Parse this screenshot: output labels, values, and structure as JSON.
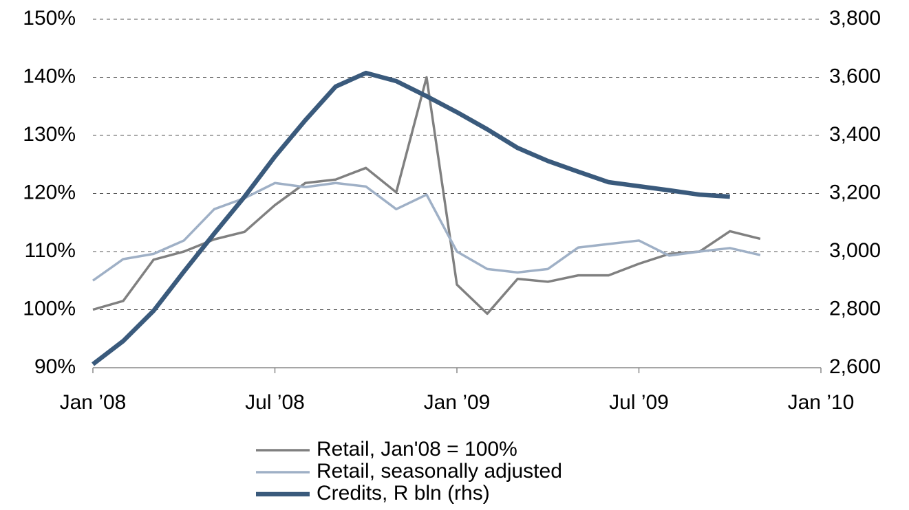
{
  "chart_data": {
    "type": "line",
    "x": [
      "2008-01",
      "2008-02",
      "2008-03",
      "2008-04",
      "2008-05",
      "2008-06",
      "2008-07",
      "2008-08",
      "2008-09",
      "2008-10",
      "2008-11",
      "2008-12",
      "2009-01",
      "2009-02",
      "2009-03",
      "2009-04",
      "2009-05",
      "2009-06",
      "2009-07",
      "2009-08",
      "2009-09",
      "2009-10",
      "2009-11"
    ],
    "xlim": [
      "2008-01",
      "2010-01"
    ],
    "xticks": [
      {
        "value": "2008-01",
        "label": "Jan ’08"
      },
      {
        "value": "2008-07",
        "label": "Jul ’08"
      },
      {
        "value": "2009-01",
        "label": "Jan ’09"
      },
      {
        "value": "2009-07",
        "label": "Jul ’09"
      },
      {
        "value": "2010-01",
        "label": "Jan ’10"
      }
    ],
    "ylim": [
      90,
      150
    ],
    "yticks": [
      {
        "value": 90,
        "label": "90%"
      },
      {
        "value": 100,
        "label": "100%"
      },
      {
        "value": 110,
        "label": "110%"
      },
      {
        "value": 120,
        "label": "120%"
      },
      {
        "value": 130,
        "label": "130%"
      },
      {
        "value": 140,
        "label": "140%"
      },
      {
        "value": 150,
        "label": "150%"
      }
    ],
    "y2lim": [
      2600,
      3800
    ],
    "y2ticks": [
      {
        "value": 2600,
        "label": "2,600"
      },
      {
        "value": 2800,
        "label": "2,800"
      },
      {
        "value": 3000,
        "label": "3,000"
      },
      {
        "value": 3200,
        "label": "3,200"
      },
      {
        "value": 3400,
        "label": "3,400"
      },
      {
        "value": 3600,
        "label": "3,600"
      },
      {
        "value": 3800,
        "label": "3,800"
      }
    ],
    "grid": true,
    "legend": "bottom",
    "series": [
      {
        "name": "Retail, Jan'08 = 100%",
        "color": "#808080",
        "width": 3.5,
        "values": [
          100,
          101.5,
          108.6,
          110,
          112.1,
          113.4,
          118,
          121.8,
          122.4,
          124.4,
          120.2,
          140,
          104.3,
          99.3,
          105.3,
          104.8,
          105.9,
          105.9,
          107.9,
          109.6,
          110,
          113.5,
          112.2
        ]
      },
      {
        "name": "Retail, seasonally adjusted",
        "color": "#9fb0c6",
        "width": 3.5,
        "values": [
          105,
          108.7,
          109.6,
          111.9,
          117.3,
          119.2,
          121.8,
          121.1,
          121.8,
          121.2,
          117.3,
          119.8,
          110,
          107,
          106.4,
          107,
          110.7,
          111.3,
          111.9,
          109.3,
          110,
          110.6,
          109.4
        ]
      },
      {
        "name": "Credits, R bln (rhs)",
        "color": "#3a5a7c",
        "width": 6.5,
        "axis": "y2",
        "values": [
          2612,
          2692,
          2796,
          2931,
          3062,
          3189,
          3327,
          3452,
          3568,
          3615,
          3587,
          3535,
          3480,
          3421,
          3357,
          3312,
          3275,
          3239,
          3225,
          3211,
          3196,
          3189,
          null
        ]
      }
    ]
  }
}
